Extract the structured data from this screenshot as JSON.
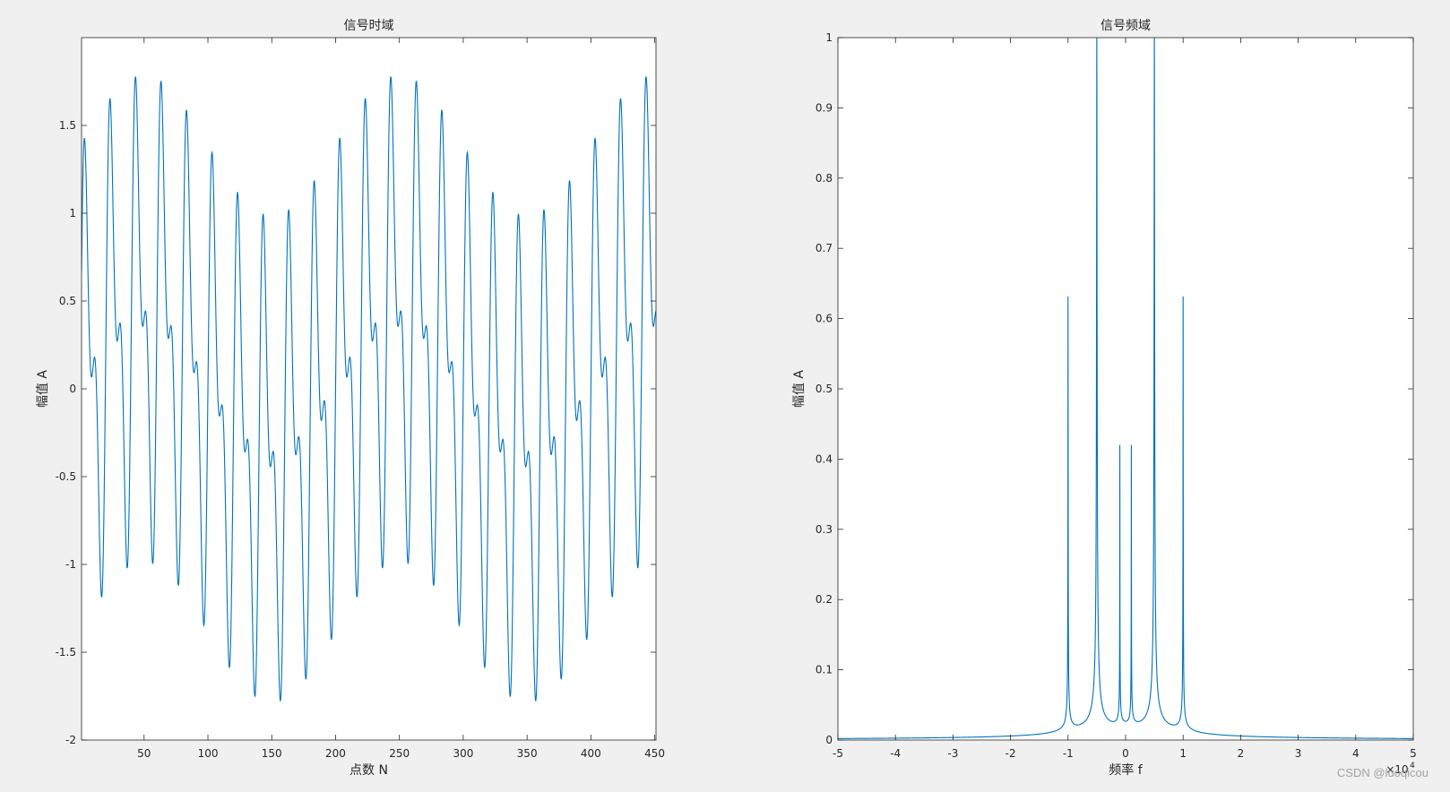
{
  "watermark": "CSDN @luoqicou",
  "chart_data": [
    {
      "type": "line",
      "title": "信号时域",
      "xlabel": "点数 N",
      "ylabel": "幅值 A",
      "xlim": [
        1,
        451
      ],
      "ylim": [
        -2,
        2
      ],
      "xticks": [
        50,
        100,
        150,
        200,
        250,
        300,
        350,
        400,
        450
      ],
      "yticks": [
        -2,
        -1.5,
        -1,
        -0.5,
        0,
        0.5,
        1,
        1.5
      ],
      "grid": false,
      "color": "#0072bd",
      "series": [
        {
          "signal": "sin(2πn/20)+0.4·sin(2πn/200)+0.6·sin(2πn/10)",
          "n_range": [
            1,
            451
          ]
        }
      ]
    },
    {
      "type": "line",
      "title": "信号频域",
      "xlabel": "频率 f",
      "ylabel": "幅值 A",
      "xlim": [
        -5,
        5
      ],
      "ylim": [
        0,
        1
      ],
      "x_exponent_label": "×10",
      "x_exponent": "4",
      "xticks": [
        -5,
        -4,
        -3,
        -2,
        -1,
        0,
        1,
        2,
        3,
        4,
        5
      ],
      "yticks": [
        0,
        0.1,
        0.2,
        0.3,
        0.4,
        0.5,
        0.6,
        0.7,
        0.8,
        0.9,
        1
      ],
      "grid": false,
      "color": "#0072bd",
      "series": [
        {
          "peaks": [
            {
              "x": -1,
              "y": 0.62
            },
            {
              "x": -0.5,
              "y": 1.0
            },
            {
              "x": -0.1,
              "y": 0.4
            },
            {
              "x": 0.1,
              "y": 0.4
            },
            {
              "x": 0.5,
              "y": 1.0
            },
            {
              "x": 1,
              "y": 0.62
            }
          ]
        }
      ]
    }
  ]
}
